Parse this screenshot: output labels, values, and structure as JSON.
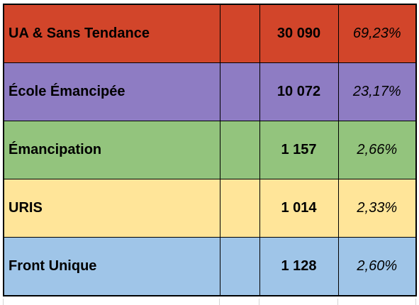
{
  "table": {
    "rows": [
      {
        "name": "UA & Sans Tendance",
        "votes": "30 090",
        "percent": "69,23%",
        "color": "#d2452a"
      },
      {
        "name": "École Émancipée",
        "votes": "10 072",
        "percent": "23,17%",
        "color": "#8e7cc3"
      },
      {
        "name": "Émancipation",
        "votes": "1 157",
        "percent": "2,66%",
        "color": "#93c47d"
      },
      {
        "name": "URIS",
        "votes": "1 014",
        "percent": "2,33%",
        "color": "#ffe599"
      },
      {
        "name": "Front Unique",
        "votes": "1 128",
        "percent": "2,60%",
        "color": "#9fc5e8"
      }
    ]
  }
}
